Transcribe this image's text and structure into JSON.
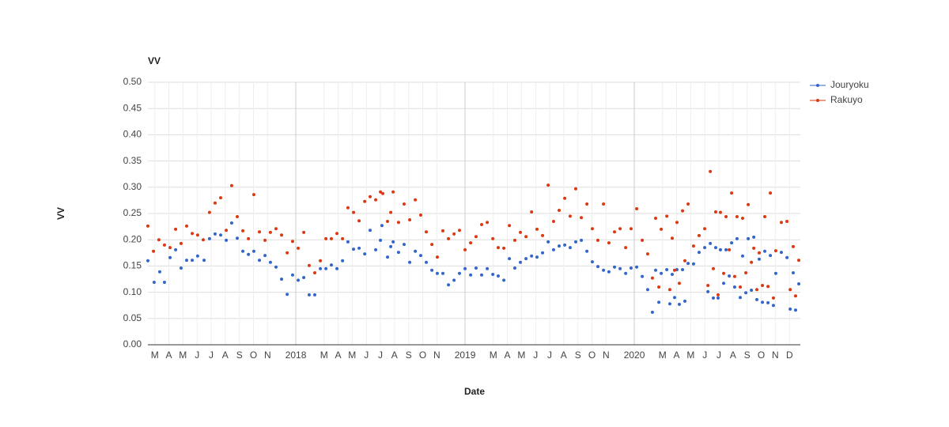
{
  "chart_data": {
    "type": "scatter",
    "title": "VV",
    "x_label": "Date",
    "y_label": "VV",
    "xlim": [
      2017.126,
      2020.981
    ],
    "ylim": [
      0,
      0.5
    ],
    "xticks": [
      {
        "value": 2017.167,
        "label": "M"
      },
      {
        "value": 2017.25,
        "label": "A"
      },
      {
        "value": 2017.333,
        "label": "M"
      },
      {
        "value": 2017.417,
        "label": "J"
      },
      {
        "value": 2017.5,
        "label": "J"
      },
      {
        "value": 2017.583,
        "label": "A"
      },
      {
        "value": 2017.667,
        "label": "S"
      },
      {
        "value": 2017.75,
        "label": "O"
      },
      {
        "value": 2017.833,
        "label": "N"
      },
      2018,
      {
        "value": 2018.167,
        "label": "M"
      },
      {
        "value": 2018.25,
        "label": "A"
      },
      {
        "value": 2018.333,
        "label": "M"
      },
      {
        "value": 2018.417,
        "label": "J"
      },
      {
        "value": 2018.5,
        "label": "J"
      },
      {
        "value": 2018.583,
        "label": "A"
      },
      {
        "value": 2018.667,
        "label": "S"
      },
      {
        "value": 2018.75,
        "label": "O"
      },
      {
        "value": 2018.833,
        "label": "N"
      },
      2019,
      {
        "value": 2019.167,
        "label": "M"
      },
      {
        "value": 2019.25,
        "label": "A"
      },
      {
        "value": 2019.333,
        "label": "M"
      },
      {
        "value": 2019.417,
        "label": "J"
      },
      {
        "value": 2019.5,
        "label": "J"
      },
      {
        "value": 2019.583,
        "label": "A"
      },
      {
        "value": 2019.667,
        "label": "S"
      },
      {
        "value": 2019.75,
        "label": "O"
      },
      {
        "value": 2019.833,
        "label": "N"
      },
      2020,
      {
        "value": 2020.167,
        "label": "M"
      },
      {
        "value": 2020.25,
        "label": "A"
      },
      {
        "value": 2020.333,
        "label": "M"
      },
      {
        "value": 2020.417,
        "label": "J"
      },
      {
        "value": 2020.5,
        "label": "J"
      },
      {
        "value": 2020.583,
        "label": "A"
      },
      {
        "value": 2020.667,
        "label": "S"
      },
      {
        "value": 2020.75,
        "label": "O"
      },
      {
        "value": 2020.833,
        "label": "N"
      },
      {
        "value": 2020.917,
        "label": "D"
      }
    ],
    "yticks": [
      {
        "value": 0,
        "label": "0.00"
      },
      {
        "value": 0.05,
        "label": "0.05"
      },
      {
        "value": 0.1,
        "label": "0.10"
      },
      {
        "value": 0.15,
        "label": "0.15"
      },
      {
        "value": 0.2,
        "label": "0.20"
      },
      {
        "value": 0.25,
        "label": "0.25"
      },
      {
        "value": 0.3,
        "label": "0.30"
      },
      {
        "value": 0.35,
        "label": "0.35"
      },
      {
        "value": 0.4,
        "label": "0.40"
      },
      {
        "value": 0.45,
        "label": "0.45"
      },
      {
        "value": 0.5,
        "label": "0.50"
      }
    ],
    "grid": true,
    "legend": "right",
    "series": [
      {
        "name": "Jouryoku",
        "color": "#3366cc",
        "x": [
          2017.126,
          2017.163,
          2017.196,
          2017.224,
          2017.257,
          2017.29,
          2017.322,
          2017.355,
          2017.388,
          2017.42,
          2017.458,
          2017.49,
          2017.523,
          2017.556,
          2017.589,
          2017.621,
          2017.654,
          2017.687,
          2017.72,
          2017.752,
          2017.785,
          2017.818,
          2017.85,
          2017.883,
          2017.916,
          2017.949,
          2017.981,
          2018.014,
          2018.047,
          2018.079,
          2018.112,
          2018.145,
          2018.178,
          2018.21,
          2018.243,
          2018.276,
          2018.308,
          2018.341,
          2018.374,
          2018.407,
          2018.439,
          2018.472,
          2018.5,
          2018.509,
          2018.542,
          2018.561,
          2018.575,
          2018.607,
          2018.64,
          2018.673,
          2018.706,
          2018.738,
          2018.771,
          2018.804,
          2018.836,
          2018.869,
          2018.902,
          2018.935,
          2018.967,
          2019.0,
          2019.033,
          2019.065,
          2019.098,
          2019.131,
          2019.164,
          2019.196,
          2019.229,
          2019.262,
          2019.294,
          2019.327,
          2019.36,
          2019.393,
          2019.425,
          2019.458,
          2019.491,
          2019.523,
          2019.556,
          2019.589,
          2019.621,
          2019.654,
          2019.687,
          2019.72,
          2019.752,
          2019.785,
          2019.818,
          2019.85,
          2019.883,
          2019.916,
          2019.949,
          2019.981,
          2020.014,
          2020.047,
          2020.079,
          2020.107,
          2020.126,
          2020.145,
          2020.159,
          2020.192,
          2020.21,
          2020.224,
          2020.238,
          2020.252,
          2020.266,
          2020.285,
          2020.299,
          2020.318,
          2020.35,
          2020.383,
          2020.416,
          2020.435,
          2020.449,
          2020.467,
          2020.481,
          2020.495,
          2020.509,
          2020.528,
          2020.542,
          2020.561,
          2020.575,
          2020.593,
          2020.607,
          2020.626,
          2020.64,
          2020.659,
          2020.673,
          2020.692,
          2020.706,
          2020.724,
          2020.738,
          2020.757,
          2020.771,
          2020.79,
          2020.804,
          2020.822,
          2020.836,
          2020.869,
          2020.902,
          2020.921,
          2020.939,
          2020.953,
          2020.972
        ],
        "values": [
          0.16,
          0.119,
          0.139,
          0.119,
          0.166,
          0.181,
          0.146,
          0.161,
          0.161,
          0.169,
          0.161,
          0.202,
          0.211,
          0.209,
          0.199,
          0.232,
          0.203,
          0.178,
          0.172,
          0.178,
          0.161,
          0.17,
          0.157,
          0.148,
          0.125,
          0.096,
          0.133,
          0.123,
          0.128,
          0.095,
          0.095,
          0.145,
          0.145,
          0.152,
          0.145,
          0.16,
          0.196,
          0.182,
          0.184,
          0.173,
          0.218,
          0.181,
          0.199,
          0.227,
          0.167,
          0.187,
          0.196,
          0.176,
          0.191,
          0.157,
          0.178,
          0.17,
          0.157,
          0.142,
          0.136,
          0.136,
          0.114,
          0.123,
          0.136,
          0.145,
          0.133,
          0.146,
          0.133,
          0.145,
          0.134,
          0.131,
          0.123,
          0.164,
          0.146,
          0.157,
          0.164,
          0.169,
          0.167,
          0.175,
          0.196,
          0.181,
          0.188,
          0.19,
          0.185,
          0.196,
          0.199,
          0.178,
          0.158,
          0.149,
          0.142,
          0.139,
          0.148,
          0.145,
          0.136,
          0.146,
          0.148,
          0.13,
          0.105,
          0.062,
          0.142,
          0.081,
          0.136,
          0.143,
          0.078,
          0.134,
          0.09,
          0.143,
          0.077,
          0.143,
          0.083,
          0.155,
          0.154,
          0.176,
          0.185,
          0.101,
          0.193,
          0.089,
          0.185,
          0.089,
          0.181,
          0.117,
          0.181,
          0.131,
          0.194,
          0.11,
          0.202,
          0.09,
          0.169,
          0.099,
          0.202,
          0.104,
          0.205,
          0.086,
          0.163,
          0.081,
          0.178,
          0.08,
          0.17,
          0.075,
          0.136,
          0.176,
          0.166,
          0.068,
          0.137,
          0.066,
          0.116
        ]
      },
      {
        "name": "Rakuyo",
        "color": "#dc3912",
        "x": [
          2017.126,
          2017.159,
          2017.191,
          2017.224,
          2017.257,
          2017.29,
          2017.322,
          2017.355,
          2017.388,
          2017.42,
          2017.453,
          2017.49,
          2017.523,
          2017.556,
          2017.589,
          2017.621,
          2017.654,
          2017.687,
          2017.72,
          2017.752,
          2017.785,
          2017.818,
          2017.85,
          2017.883,
          2017.916,
          2017.949,
          2017.981,
          2018.014,
          2018.047,
          2018.079,
          2018.112,
          2018.145,
          2018.178,
          2018.21,
          2018.243,
          2018.276,
          2018.308,
          2018.341,
          2018.374,
          2018.407,
          2018.439,
          2018.472,
          2018.5,
          2018.514,
          2018.542,
          2018.561,
          2018.575,
          2018.607,
          2018.64,
          2018.673,
          2018.706,
          2018.738,
          2018.771,
          2018.804,
          2018.836,
          2018.869,
          2018.902,
          2018.935,
          2018.967,
          2019.0,
          2019.033,
          2019.065,
          2019.098,
          2019.131,
          2019.164,
          2019.196,
          2019.229,
          2019.262,
          2019.294,
          2019.327,
          2019.36,
          2019.393,
          2019.425,
          2019.458,
          2019.491,
          2019.523,
          2019.556,
          2019.589,
          2019.621,
          2019.654,
          2019.687,
          2019.72,
          2019.752,
          2019.785,
          2019.818,
          2019.85,
          2019.883,
          2019.916,
          2019.949,
          2019.981,
          2020.014,
          2020.047,
          2020.079,
          2020.107,
          2020.126,
          2020.145,
          2020.159,
          2020.192,
          2020.21,
          2020.224,
          2020.238,
          2020.252,
          2020.266,
          2020.285,
          2020.299,
          2020.318,
          2020.35,
          2020.383,
          2020.416,
          2020.435,
          2020.449,
          2020.467,
          2020.481,
          2020.495,
          2020.509,
          2020.528,
          2020.542,
          2020.561,
          2020.575,
          2020.593,
          2020.607,
          2020.626,
          2020.64,
          2020.659,
          2020.673,
          2020.692,
          2020.706,
          2020.724,
          2020.738,
          2020.757,
          2020.771,
          2020.79,
          2020.804,
          2020.822,
          2020.836,
          2020.869,
          2020.902,
          2020.921,
          2020.939,
          2020.953,
          2020.972
        ],
        "values": [
          0.226,
          0.178,
          0.2,
          0.19,
          0.185,
          0.22,
          0.193,
          0.226,
          0.212,
          0.209,
          0.2,
          0.252,
          0.27,
          0.28,
          0.218,
          0.303,
          0.244,
          0.217,
          0.202,
          0.286,
          0.215,
          0.199,
          0.214,
          0.221,
          0.209,
          0.175,
          0.197,
          0.184,
          0.214,
          0.151,
          0.137,
          0.16,
          0.202,
          0.202,
          0.212,
          0.202,
          0.261,
          0.252,
          0.236,
          0.273,
          0.282,
          0.276,
          0.291,
          0.288,
          0.235,
          0.252,
          0.291,
          0.233,
          0.268,
          0.238,
          0.276,
          0.247,
          0.215,
          0.191,
          0.167,
          0.217,
          0.202,
          0.211,
          0.218,
          0.181,
          0.194,
          0.206,
          0.229,
          0.233,
          0.202,
          0.185,
          0.184,
          0.227,
          0.199,
          0.214,
          0.206,
          0.253,
          0.22,
          0.208,
          0.304,
          0.235,
          0.256,
          0.279,
          0.245,
          0.297,
          0.242,
          0.268,
          0.221,
          0.199,
          0.268,
          0.194,
          0.215,
          0.221,
          0.185,
          0.221,
          0.259,
          0.199,
          0.173,
          0.127,
          0.241,
          0.11,
          0.22,
          0.245,
          0.105,
          0.203,
          0.142,
          0.233,
          0.117,
          0.255,
          0.16,
          0.268,
          0.188,
          0.208,
          0.221,
          0.113,
          0.33,
          0.145,
          0.253,
          0.095,
          0.252,
          0.136,
          0.244,
          0.181,
          0.289,
          0.13,
          0.244,
          0.11,
          0.241,
          0.137,
          0.267,
          0.157,
          0.184,
          0.105,
          0.175,
          0.113,
          0.244,
          0.111,
          0.289,
          0.089,
          0.179,
          0.233,
          0.235,
          0.105,
          0.187,
          0.093,
          0.161
        ]
      }
    ]
  }
}
